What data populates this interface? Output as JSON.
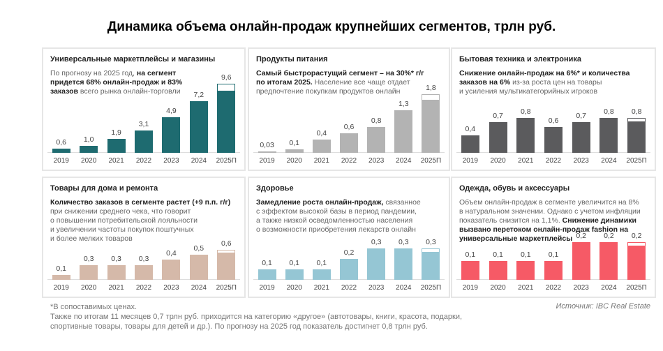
{
  "title": "Динамика объема онлайн-продаж крупнейших сегментов, трлн руб.",
  "chart_data": [
    {
      "type": "bar",
      "title": "Универсальные маркетплейсы и магазины",
      "color": "#1e6b70",
      "description": [
        {
          "text": "По прогнозу на 2025 год, ",
          "bold": false
        },
        {
          "text": "на сегмент\nпридется 68% онлайн-продаж и 83%\nзаказов",
          "bold": true
        },
        {
          "text": " всего рынка онлайн-торговли",
          "bold": false
        }
      ],
      "categories": [
        "2019",
        "2020",
        "2021",
        "2022",
        "2023",
        "2024",
        "2025П"
      ],
      "values": [
        0.6,
        1.0,
        1.9,
        3.1,
        4.9,
        7.2,
        9.6
      ],
      "labels": [
        "0,6",
        "1,0",
        "1,9",
        "3,1",
        "4,9",
        "7,2",
        "9,6"
      ],
      "forecast_filled_fraction": 0.9
    },
    {
      "type": "bar",
      "title": "Продукты питания",
      "color": "#b3b3b3",
      "description": [
        {
          "text": "Самый быстрорастущий сегмент – на 30%* г/г\nпо итогам 2025.",
          "bold": true
        },
        {
          "text": " Население все чаще отдает\nпредпочтение покупкам продуктов онлайн",
          "bold": false
        }
      ],
      "categories": [
        "2019",
        "2020",
        "2021",
        "2022",
        "2023",
        "2024",
        "2025П"
      ],
      "values": [
        0.03,
        0.1,
        0.4,
        0.6,
        0.8,
        1.3,
        1.8
      ],
      "labels": [
        "0,03",
        "0,1",
        "0,4",
        "0,6",
        "0,8",
        "1,3",
        "1,8"
      ],
      "forecast_filled_fraction": 0.9
    },
    {
      "type": "bar",
      "title": "Бытовая техника и электроника",
      "color": "#5b5b5d",
      "description": [
        {
          "text": "Снижение онлайн-продаж на 6%* и количества\nзаказов на 6%",
          "bold": true
        },
        {
          "text": " из-за роста цен на товары\nи усиления мультикатегорийных игроков",
          "bold": false
        }
      ],
      "categories": [
        "2019",
        "2020",
        "2021",
        "2022",
        "2023",
        "2024",
        "2025П"
      ],
      "values": [
        0.4,
        0.7,
        0.8,
        0.6,
        0.7,
        0.8,
        0.8
      ],
      "labels": [
        "0,4",
        "0,7",
        "0,8",
        "0,6",
        "0,7",
        "0,8",
        "0,8"
      ],
      "forecast_filled_fraction": 0.9
    },
    {
      "type": "bar",
      "title": "Товары для дома и ремонта",
      "color": "#d5b9a9",
      "description": [
        {
          "text": "Количество заказов в сегменте растет (+9 п.п. г/г)",
          "bold": true
        },
        {
          "text": "\nпри снижении среднего чека, что говорит\nо повышении потребительской лояльности\nи увеличении частоты покупок поштучных\nи более мелких товаров",
          "bold": false
        }
      ],
      "categories": [
        "2019",
        "2020",
        "2021",
        "2022",
        "2023",
        "2024",
        "2025П"
      ],
      "values": [
        0.1,
        0.3,
        0.3,
        0.3,
        0.4,
        0.5,
        0.6
      ],
      "labels": [
        "0,1",
        "0,3",
        "0,3",
        "0,3",
        "0,4",
        "0,5",
        "0,6"
      ],
      "forecast_filled_fraction": 0.9
    },
    {
      "type": "bar",
      "title": "Здоровье",
      "color": "#95c6d4",
      "description": [
        {
          "text": "Замедление роста онлайн-продаж,",
          "bold": true
        },
        {
          "text": " связанное\nс эффектом высокой базы в период пандемии,\nа также низкой осведомленностью населения\nо возможности приобретения лекарств онлайн",
          "bold": false
        }
      ],
      "categories": [
        "2019",
        "2020",
        "2021",
        "2022",
        "2023",
        "2024",
        "2025П"
      ],
      "values": [
        0.1,
        0.1,
        0.1,
        0.2,
        0.3,
        0.3,
        0.3
      ],
      "labels": [
        "0,1",
        "0,1",
        "0,1",
        "0,2",
        "0,3",
        "0,3",
        "0,3"
      ],
      "forecast_filled_fraction": 0.9
    },
    {
      "type": "bar",
      "title": "Одежда, обувь и аксессуары",
      "color": "#f65a66",
      "description": [
        {
          "text": "Объем онлайн-продаж в сегменте увеличится на 8%\nв натуральном значении. Однако с учетом инфляции\nпоказатель снизится на 1,1%. ",
          "bold": false
        },
        {
          "text": "Снижение динамики\nвызвано перетоком онлайн-продаж fashion на\nуниверсальные маркетплейсы",
          "bold": true
        }
      ],
      "categories": [
        "2019",
        "2020",
        "2021",
        "2022",
        "2023",
        "2024",
        "2025П"
      ],
      "values": [
        0.1,
        0.1,
        0.1,
        0.1,
        0.2,
        0.2,
        0.2
      ],
      "labels": [
        "0,1",
        "0,1",
        "0,1",
        "0,1",
        "0,2",
        "0,2",
        "0,2"
      ],
      "forecast_filled_fraction": 0.9
    }
  ],
  "footnote": "*В сопоставимых ценах.\nТакже по итогам 11 месяцев 0,7 трлн руб. приходится на категорию «другое» (автотовары, книги, красота, подарки,\nспортивные товары, товары для детей и др.). По прогнозу на 2025 год показатель достигнет 0,8 трлн руб.",
  "source": "Источник: IBC Real Estate"
}
